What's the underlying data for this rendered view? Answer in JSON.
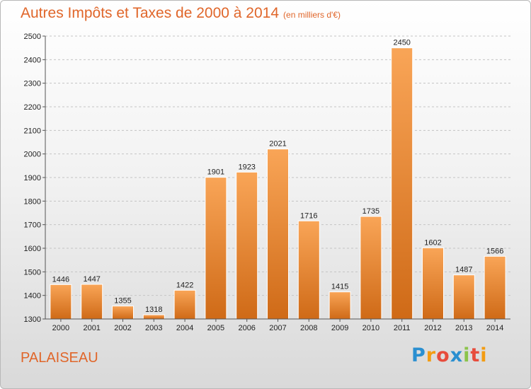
{
  "chart_data": {
    "type": "bar",
    "title": "Autres Impôts et Taxes de 2000 à 2014",
    "subtitle": "(en milliers d'€)",
    "categories": [
      "2000",
      "2001",
      "2002",
      "2003",
      "2004",
      "2005",
      "2006",
      "2007",
      "2008",
      "2009",
      "2010",
      "2011",
      "2012",
      "2013",
      "2014"
    ],
    "values": [
      1446,
      1447,
      1355,
      1318,
      1422,
      1901,
      1923,
      2021,
      1716,
      1415,
      1735,
      2450,
      1602,
      1487,
      1566
    ],
    "ylim": [
      1300,
      2500
    ],
    "yticks": [
      1300,
      1400,
      1500,
      1600,
      1700,
      1800,
      1900,
      2000,
      2100,
      2200,
      2300,
      2400,
      2500
    ],
    "grid": true,
    "bar_color": "#f08a30",
    "xlabel": "",
    "ylabel": ""
  },
  "commune": "PALAISEAU",
  "logo": {
    "letters": [
      "P",
      "r",
      "o",
      "x",
      "i",
      "t",
      "i"
    ],
    "colors": [
      "#2a8fd0",
      "#f39c12",
      "#e74c3c",
      "#2a8fd0",
      "#8bc34a",
      "#e74c3c",
      "#f39c12"
    ]
  }
}
